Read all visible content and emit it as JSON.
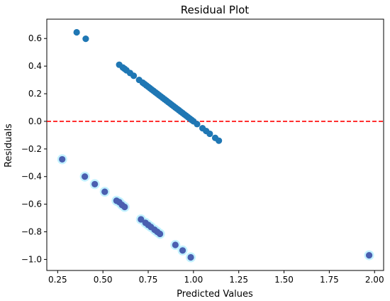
{
  "chart_data": {
    "type": "scatter",
    "title": "Residual Plot",
    "xlabel": "Predicted Values",
    "ylabel": "Residuals",
    "xlim": [
      0.19,
      2.05
    ],
    "ylim": [
      -1.08,
      0.74
    ],
    "xticks": [
      0.25,
      0.5,
      0.75,
      1.0,
      1.25,
      1.5,
      1.75,
      2.0
    ],
    "xtick_labels": [
      "0.25",
      "0.50",
      "0.75",
      "1.00",
      "1.25",
      "1.50",
      "1.75",
      "2.00"
    ],
    "yticks": [
      -1.0,
      -0.8,
      -0.6,
      -0.4,
      -0.2,
      0.0,
      0.2,
      0.4,
      0.6
    ],
    "ytick_labels": [
      "−1.0",
      "−0.8",
      "−0.6",
      "−0.4",
      "−0.2",
      "0.0",
      "0.2",
      "0.4",
      "0.6"
    ],
    "grid": false,
    "point_color": "#1f77b4",
    "lower_point_color": "#4a5fb0",
    "halo_color": "#b8f0ff",
    "reference_line": {
      "y": 0,
      "color": "#ff0000",
      "style": "dashed"
    },
    "series": [
      {
        "points": [
          [
            0.355,
            0.645
          ],
          [
            0.405,
            0.598
          ],
          [
            0.59,
            0.41
          ],
          [
            0.61,
            0.39
          ],
          [
            0.62,
            0.38
          ],
          [
            0.63,
            0.37
          ],
          [
            0.65,
            0.35
          ],
          [
            0.67,
            0.33
          ],
          [
            0.7,
            0.3
          ],
          [
            0.72,
            0.28
          ],
          [
            0.73,
            0.27
          ],
          [
            0.74,
            0.26
          ],
          [
            0.75,
            0.25
          ],
          [
            0.76,
            0.24
          ],
          [
            0.77,
            0.23
          ],
          [
            0.78,
            0.22
          ],
          [
            0.79,
            0.21
          ],
          [
            0.8,
            0.2
          ],
          [
            0.81,
            0.19
          ],
          [
            0.82,
            0.18
          ],
          [
            0.83,
            0.17
          ],
          [
            0.84,
            0.16
          ],
          [
            0.85,
            0.15
          ],
          [
            0.86,
            0.14
          ],
          [
            0.87,
            0.13
          ],
          [
            0.88,
            0.12
          ],
          [
            0.89,
            0.11
          ],
          [
            0.9,
            0.1
          ],
          [
            0.91,
            0.09
          ],
          [
            0.92,
            0.08
          ],
          [
            0.93,
            0.07
          ],
          [
            0.94,
            0.06
          ],
          [
            0.95,
            0.05
          ],
          [
            0.96,
            0.04
          ],
          [
            0.97,
            0.03
          ],
          [
            0.98,
            0.02
          ],
          [
            0.99,
            0.01
          ],
          [
            1.0,
            0.0
          ],
          [
            1.02,
            -0.02
          ],
          [
            1.05,
            -0.05
          ],
          [
            1.07,
            -0.07
          ],
          [
            1.09,
            -0.09
          ],
          [
            1.12,
            -0.12
          ],
          [
            1.14,
            -0.14
          ]
        ]
      },
      {
        "points": [
          [
            0.275,
            -0.275
          ],
          [
            0.4,
            -0.4
          ],
          [
            0.455,
            -0.455
          ],
          [
            0.51,
            -0.51
          ],
          [
            0.575,
            -0.575
          ],
          [
            0.59,
            -0.585
          ],
          [
            0.605,
            -0.605
          ],
          [
            0.62,
            -0.62
          ],
          [
            0.71,
            -0.71
          ],
          [
            0.735,
            -0.735
          ],
          [
            0.75,
            -0.75
          ],
          [
            0.765,
            -0.765
          ],
          [
            0.785,
            -0.785
          ],
          [
            0.8,
            -0.8
          ],
          [
            0.815,
            -0.815
          ],
          [
            0.9,
            -0.895
          ],
          [
            0.94,
            -0.935
          ],
          [
            0.985,
            -0.985
          ],
          [
            1.97,
            -0.97
          ]
        ]
      }
    ]
  }
}
